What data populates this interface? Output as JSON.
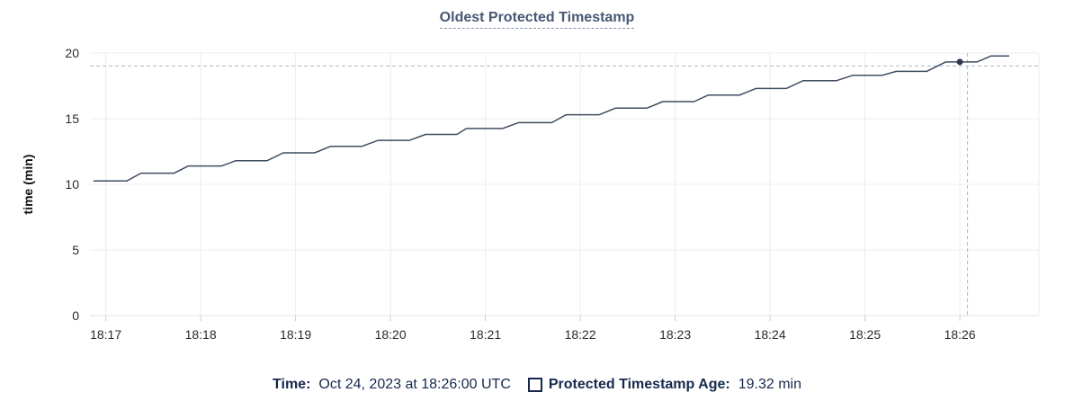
{
  "title": "Oldest Protected Timestamp",
  "colors": {
    "title": "#475872",
    "title_underline": "#8195ad",
    "line": "#3f4d61",
    "dot": "#2c3a54",
    "grid": "#ececec",
    "axis_line": "#e2e2e2",
    "tick": "#cccccc",
    "tick_label": "#2b2b2b",
    "crosshair": "#a9b9c9",
    "legend_text": "#16294d"
  },
  "legend": {
    "time_label": "Time:",
    "time_value": "Oct 24, 2023 at 18:26:00 UTC",
    "series_swatch_icon": "hollow-square",
    "series_label": "Protected Timestamp Age:",
    "series_value": "19.32 min"
  },
  "chart_data": {
    "type": "line",
    "title": "Oldest Protected Timestamp",
    "xlabel": "",
    "ylabel": "time (min)",
    "ylim": [
      0,
      20
    ],
    "y_ticks": [
      0,
      5,
      10,
      15,
      20
    ],
    "grid": true,
    "legend_position": "bottom",
    "t_unit": "minutes after 18:16:00 UTC",
    "x_range": [
      0.833,
      10.833
    ],
    "x_ticks": [
      {
        "label": "18:17",
        "t": 1
      },
      {
        "label": "18:18",
        "t": 2
      },
      {
        "label": "18:19",
        "t": 3
      },
      {
        "label": "18:20",
        "t": 4
      },
      {
        "label": "18:21",
        "t": 5
      },
      {
        "label": "18:22",
        "t": 6
      },
      {
        "label": "18:23",
        "t": 7
      },
      {
        "label": "18:24",
        "t": 8
      },
      {
        "label": "18:25",
        "t": 9
      },
      {
        "label": "18:26",
        "t": 10
      }
    ],
    "series": [
      {
        "name": "Protected Timestamp Age",
        "unit": "min",
        "points": [
          [
            0.87,
            10.25
          ],
          [
            1.22,
            10.25
          ],
          [
            1.37,
            10.85
          ],
          [
            1.72,
            10.85
          ],
          [
            1.87,
            11.4
          ],
          [
            2.22,
            11.4
          ],
          [
            2.37,
            11.8
          ],
          [
            2.7,
            11.8
          ],
          [
            2.87,
            12.4
          ],
          [
            3.2,
            12.4
          ],
          [
            3.37,
            12.9
          ],
          [
            3.7,
            12.9
          ],
          [
            3.87,
            13.35
          ],
          [
            4.2,
            13.35
          ],
          [
            4.37,
            13.8
          ],
          [
            4.7,
            13.8
          ],
          [
            4.8,
            14.25
          ],
          [
            5.18,
            14.25
          ],
          [
            5.35,
            14.7
          ],
          [
            5.7,
            14.7
          ],
          [
            5.85,
            15.3
          ],
          [
            6.2,
            15.3
          ],
          [
            6.37,
            15.8
          ],
          [
            6.7,
            15.8
          ],
          [
            6.87,
            16.3
          ],
          [
            7.2,
            16.3
          ],
          [
            7.35,
            16.8
          ],
          [
            7.68,
            16.8
          ],
          [
            7.85,
            17.3
          ],
          [
            8.17,
            17.3
          ],
          [
            8.35,
            17.9
          ],
          [
            8.7,
            17.9
          ],
          [
            8.87,
            18.3
          ],
          [
            9.18,
            18.3
          ],
          [
            9.33,
            18.6
          ],
          [
            9.65,
            18.6
          ],
          [
            9.85,
            19.32
          ],
          [
            10.18,
            19.32
          ],
          [
            10.33,
            19.78
          ],
          [
            10.52,
            19.78
          ]
        ]
      }
    ],
    "hover_point": {
      "t": 10.0,
      "time_label": "18:26",
      "value": 19.32
    }
  }
}
